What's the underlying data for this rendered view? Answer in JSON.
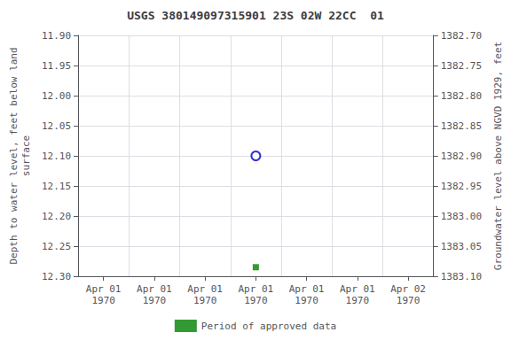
{
  "chart_data": {
    "type": "scatter",
    "title": "USGS 380149097315901 23S 02W 22CC  01",
    "y_label": "Depth to water level, feet below land\nsurface",
    "y2_label": "Groundwater level above NGVD 1929, feet",
    "categories": [
      "Apr 01\n1970",
      "Apr 01\n1970",
      "Apr 01\n1970",
      "Apr 01\n1970",
      "Apr 01\n1970",
      "Apr 01\n1970",
      "Apr 02\n1970"
    ],
    "series": [
      {
        "values": [
          null,
          null,
          null,
          12.1,
          null,
          null,
          null
        ],
        "color": "#0000cc",
        "marker": "open_circle"
      },
      {
        "name": "Period of approved data",
        "values": [
          null,
          null,
          null,
          12.285,
          null,
          null,
          null
        ],
        "color": "#008000",
        "marker": "square"
      }
    ],
    "ylim": [
      12.3,
      11.9
    ],
    "yticks": [
      {
        "value": 11.9,
        "label": "11.90"
      },
      11.95,
      {
        "value": 12,
        "label": "12.00"
      },
      12.05,
      {
        "value": 12.1,
        "label": "12.10"
      },
      12.15,
      {
        "value": 12.2,
        "label": "12.20"
      },
      12.25,
      {
        "value": 12.3,
        "label": "12.30"
      }
    ],
    "y2lim": [
      1383.1,
      1382.7
    ],
    "y2ticks": [
      {
        "value": 1382.7,
        "label": "1382.70"
      },
      1382.75,
      {
        "value": 1382.8,
        "label": "1382.80"
      },
      1382.85,
      {
        "value": 1382.9,
        "label": "1382.90"
      },
      1382.95,
      {
        "value": 1383,
        "label": "1383.00"
      },
      1383.05,
      {
        "value": 1383.1,
        "label": "1383.10"
      }
    ],
    "grid": true,
    "legend": "bottom"
  }
}
